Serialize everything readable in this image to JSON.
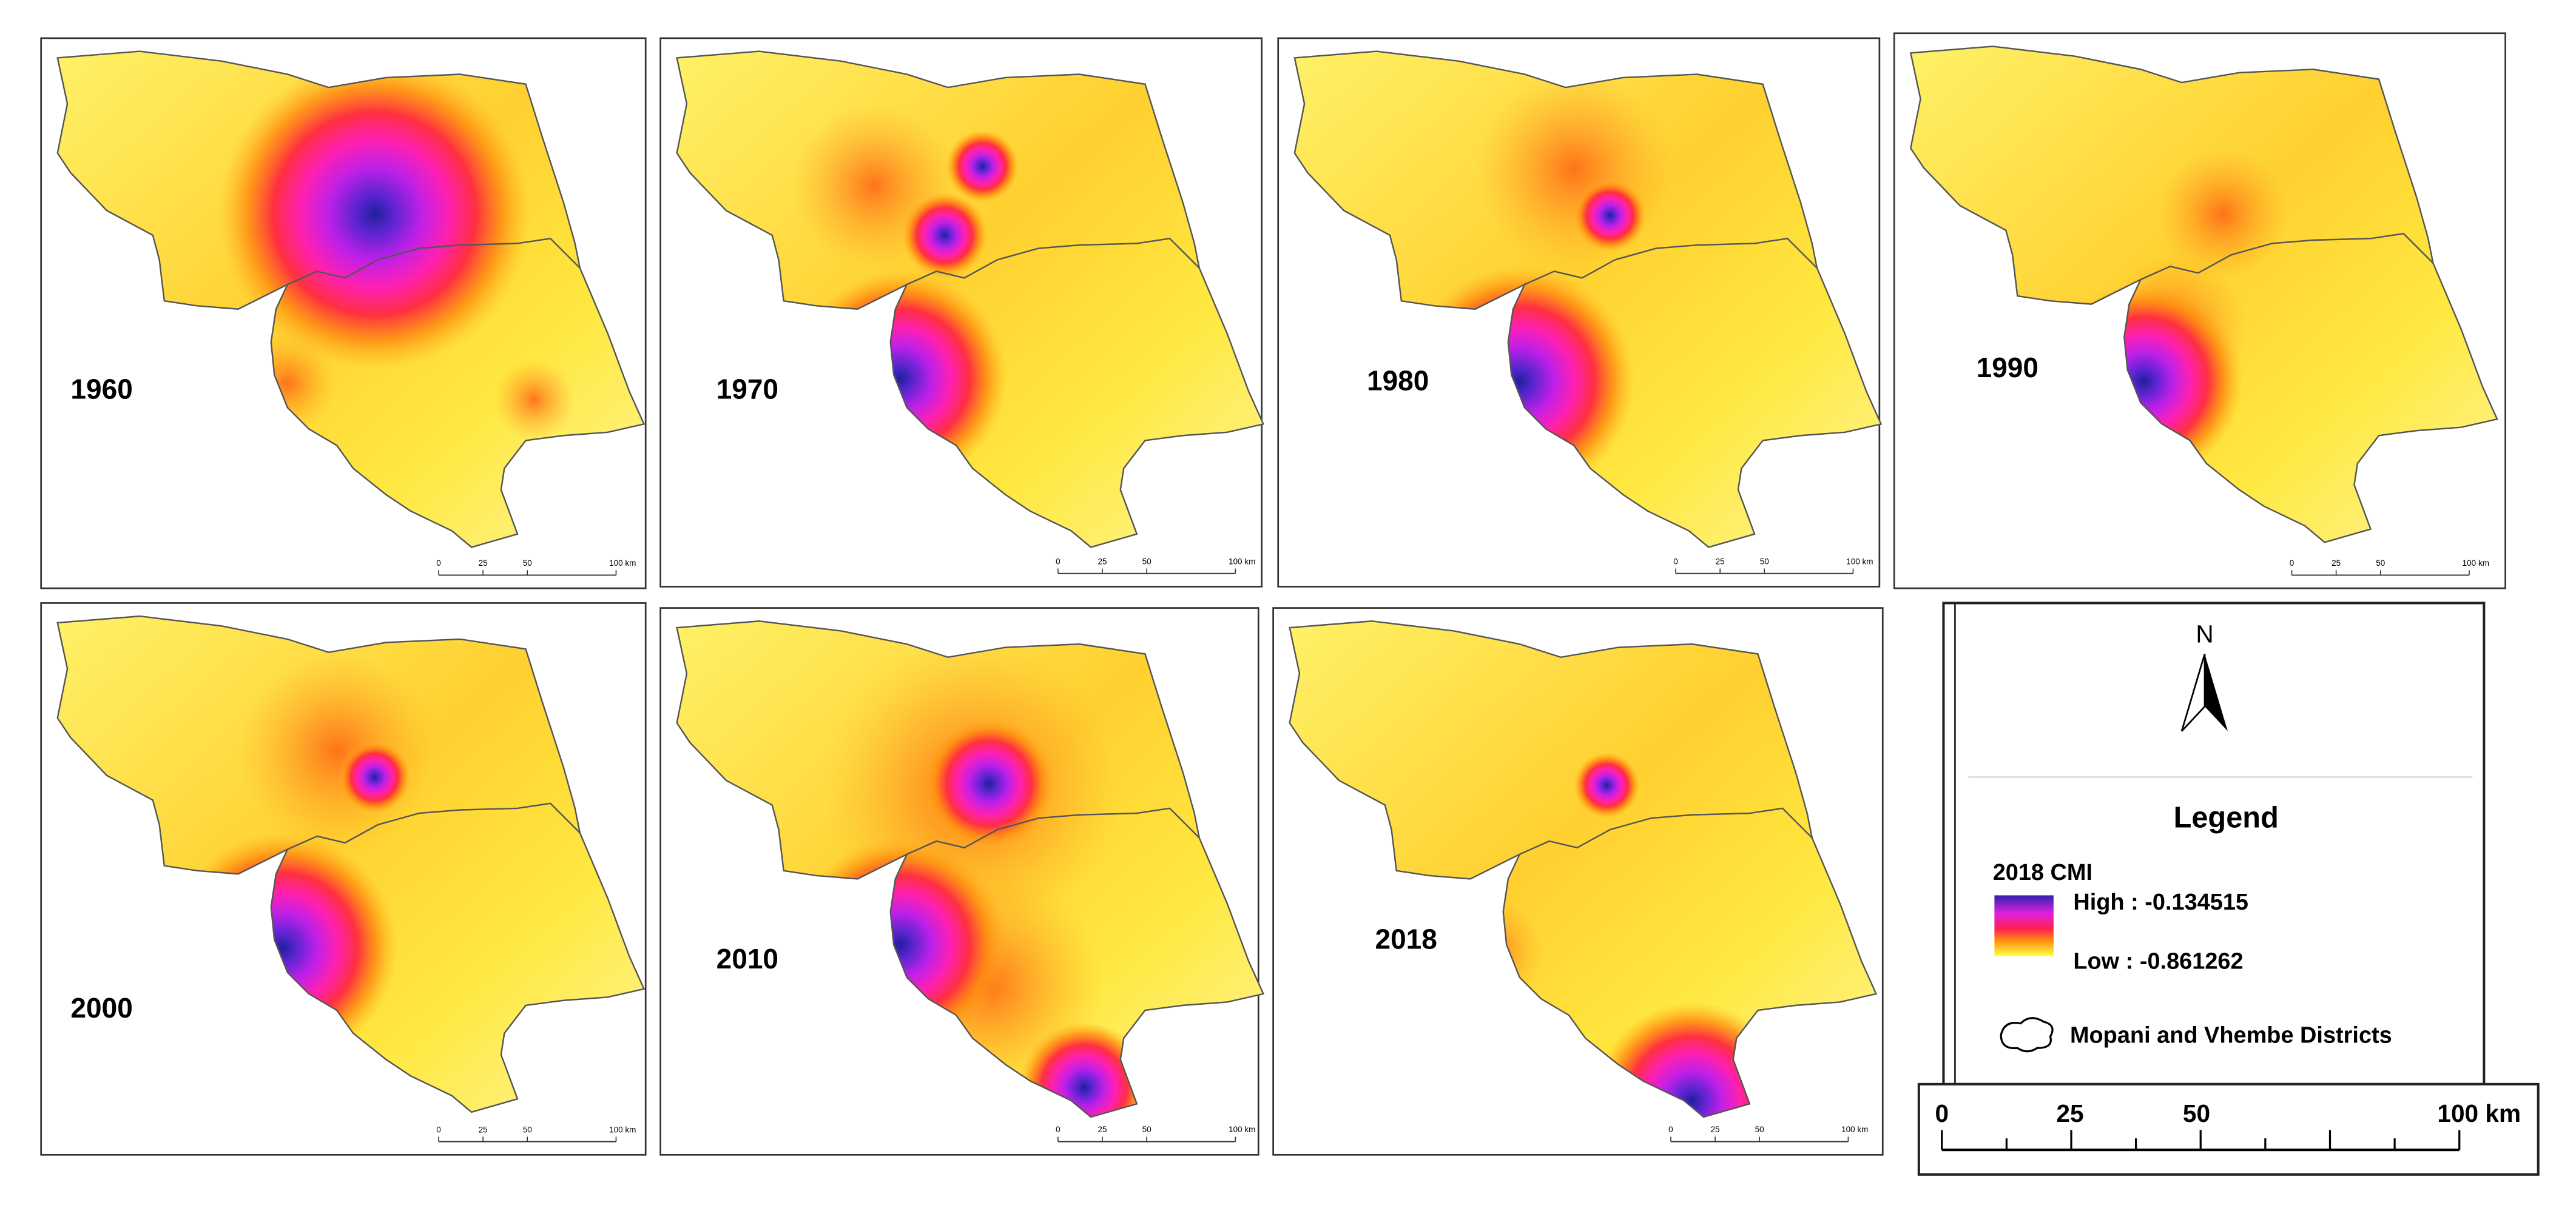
{
  "panels": [
    {
      "year": "1960"
    },
    {
      "year": "1970"
    },
    {
      "year": "1980"
    },
    {
      "year": "1990"
    },
    {
      "year": "2000"
    },
    {
      "year": "2010"
    },
    {
      "year": "2018"
    }
  ],
  "scalebar_small": [
    "0",
    "25",
    "50",
    "100 km"
  ],
  "legend": {
    "north": "N",
    "title": "Legend",
    "variable": "2018 CMI",
    "high": "High : -0.134515",
    "low": "Low : -0.861262",
    "boundary": "Mopani and Vhembe Districts"
  },
  "scalebar": [
    "0",
    "25",
    "50",
    "100 km"
  ]
}
